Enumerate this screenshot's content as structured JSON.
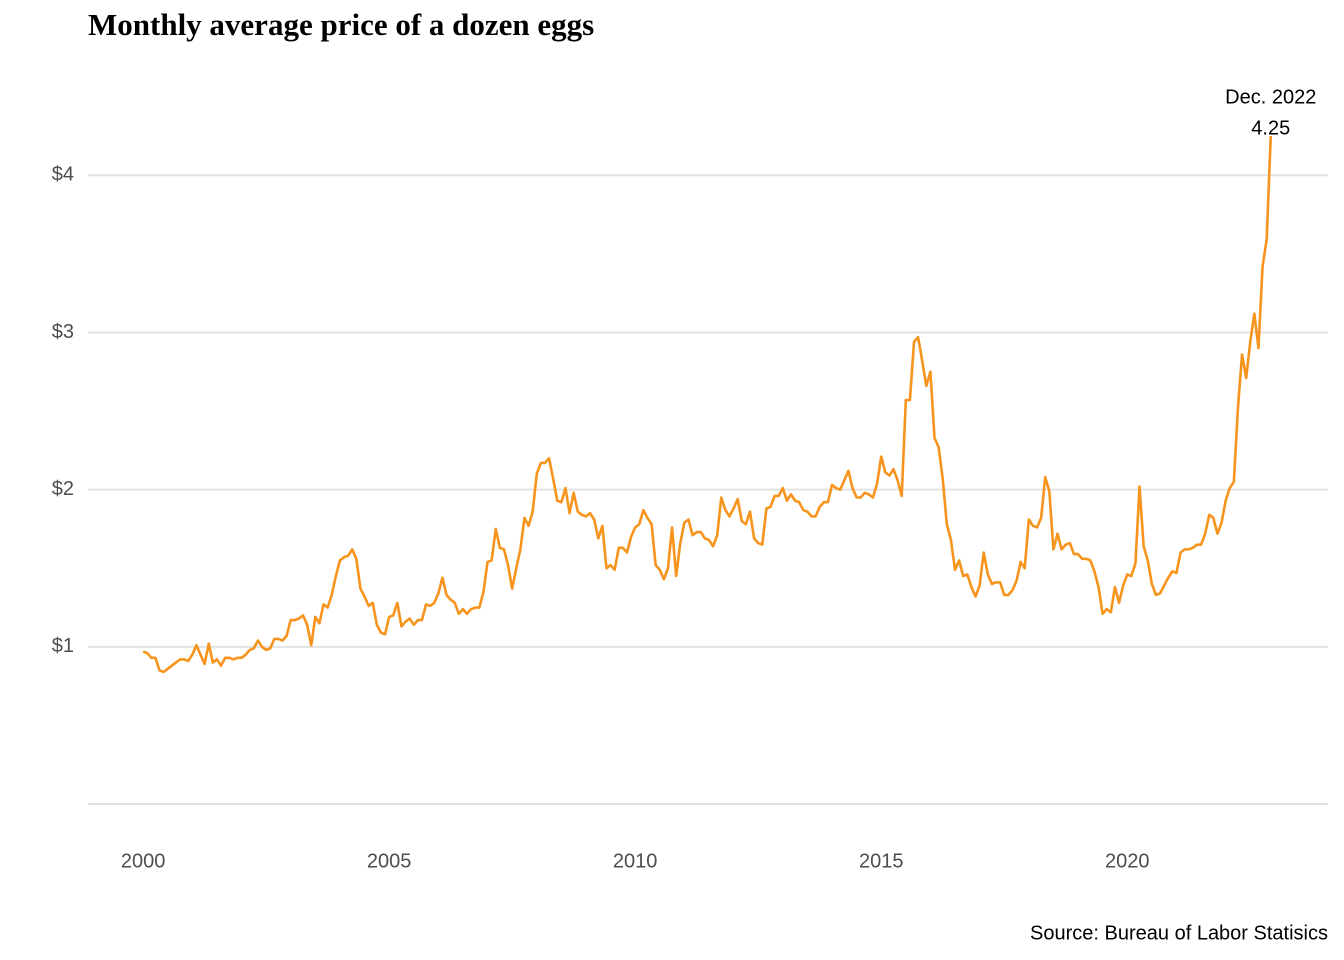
{
  "chart_data": {
    "type": "line",
    "title": "Monthly average price of a dozen eggs",
    "caption": "Source: Bureau of Labor Statisics",
    "annotation": {
      "label": "Dec. 2022"
    },
    "x": [
      "2000-01",
      "2000-02",
      "2000-03",
      "2000-04",
      "2000-05",
      "2000-06",
      "2000-07",
      "2000-08",
      "2000-09",
      "2000-10",
      "2000-11",
      "2000-12",
      "2001-01",
      "2001-02",
      "2001-03",
      "2001-04",
      "2001-05",
      "2001-06",
      "2001-07",
      "2001-08",
      "2001-09",
      "2001-10",
      "2001-11",
      "2001-12",
      "2002-01",
      "2002-02",
      "2002-03",
      "2002-04",
      "2002-05",
      "2002-06",
      "2002-07",
      "2002-08",
      "2002-09",
      "2002-10",
      "2002-11",
      "2002-12",
      "2003-01",
      "2003-02",
      "2003-03",
      "2003-04",
      "2003-05",
      "2003-06",
      "2003-07",
      "2003-08",
      "2003-09",
      "2003-10",
      "2003-11",
      "2003-12",
      "2004-01",
      "2004-02",
      "2004-03",
      "2004-04",
      "2004-05",
      "2004-06",
      "2004-07",
      "2004-08",
      "2004-09",
      "2004-10",
      "2004-11",
      "2004-12",
      "2005-01",
      "2005-02",
      "2005-03",
      "2005-04",
      "2005-05",
      "2005-06",
      "2005-07",
      "2005-08",
      "2005-09",
      "2005-10",
      "2005-11",
      "2005-12",
      "2006-01",
      "2006-02",
      "2006-03",
      "2006-04",
      "2006-05",
      "2006-06",
      "2006-07",
      "2006-08",
      "2006-09",
      "2006-10",
      "2006-11",
      "2006-12",
      "2007-01",
      "2007-02",
      "2007-03",
      "2007-04",
      "2007-05",
      "2007-06",
      "2007-07",
      "2007-08",
      "2007-09",
      "2007-10",
      "2007-11",
      "2007-12",
      "2008-01",
      "2008-02",
      "2008-03",
      "2008-04",
      "2008-05",
      "2008-06",
      "2008-07",
      "2008-08",
      "2008-09",
      "2008-10",
      "2008-11",
      "2008-12",
      "2009-01",
      "2009-02",
      "2009-03",
      "2009-04",
      "2009-05",
      "2009-06",
      "2009-07",
      "2009-08",
      "2009-09",
      "2009-10",
      "2009-11",
      "2009-12",
      "2010-01",
      "2010-02",
      "2010-03",
      "2010-04",
      "2010-05",
      "2010-06",
      "2010-07",
      "2010-08",
      "2010-09",
      "2010-10",
      "2010-11",
      "2010-12",
      "2011-01",
      "2011-02",
      "2011-03",
      "2011-04",
      "2011-05",
      "2011-06",
      "2011-07",
      "2011-08",
      "2011-09",
      "2011-10",
      "2011-11",
      "2011-12",
      "2012-01",
      "2012-02",
      "2012-03",
      "2012-04",
      "2012-05",
      "2012-06",
      "2012-07",
      "2012-08",
      "2012-09",
      "2012-10",
      "2012-11",
      "2012-12",
      "2013-01",
      "2013-02",
      "2013-03",
      "2013-04",
      "2013-05",
      "2013-06",
      "2013-07",
      "2013-08",
      "2013-09",
      "2013-10",
      "2013-11",
      "2013-12",
      "2014-01",
      "2014-02",
      "2014-03",
      "2014-04",
      "2014-05",
      "2014-06",
      "2014-07",
      "2014-08",
      "2014-09",
      "2014-10",
      "2014-11",
      "2014-12",
      "2015-01",
      "2015-02",
      "2015-03",
      "2015-04",
      "2015-05",
      "2015-06",
      "2015-07",
      "2015-08",
      "2015-09",
      "2015-10",
      "2015-11",
      "2015-12",
      "2016-01",
      "2016-02",
      "2016-03",
      "2016-04",
      "2016-05",
      "2016-06",
      "2016-07",
      "2016-08",
      "2016-09",
      "2016-10",
      "2016-11",
      "2016-12",
      "2017-01",
      "2017-02",
      "2017-03",
      "2017-04",
      "2017-05",
      "2017-06",
      "2017-07",
      "2017-08",
      "2017-09",
      "2017-10",
      "2017-11",
      "2017-12",
      "2018-01",
      "2018-02",
      "2018-03",
      "2018-04",
      "2018-05",
      "2018-06",
      "2018-07",
      "2018-08",
      "2018-09",
      "2018-10",
      "2018-11",
      "2018-12",
      "2019-01",
      "2019-02",
      "2019-03",
      "2019-04",
      "2019-05",
      "2019-06",
      "2019-07",
      "2019-08",
      "2019-09",
      "2019-10",
      "2019-11",
      "2019-12",
      "2020-01",
      "2020-02",
      "2020-03",
      "2020-04",
      "2020-05",
      "2020-06",
      "2020-07",
      "2020-08",
      "2020-09",
      "2020-10",
      "2020-11",
      "2020-12",
      "2021-01",
      "2021-02",
      "2021-03",
      "2021-04",
      "2021-05",
      "2021-06",
      "2021-07",
      "2021-08",
      "2021-09",
      "2021-10",
      "2021-11",
      "2021-12",
      "2022-01",
      "2022-02",
      "2022-03",
      "2022-04",
      "2022-05",
      "2022-06",
      "2022-07",
      "2022-08",
      "2022-09",
      "2022-10",
      "2022-11",
      "2022-12"
    ],
    "series": [
      {
        "color": "#f7941d",
        "values": [
          0.97,
          0.96,
          0.93,
          0.93,
          0.85,
          0.84,
          0.86,
          0.88,
          0.9,
          0.92,
          0.92,
          0.91,
          0.95,
          1.01,
          0.95,
          0.89,
          1.02,
          0.9,
          0.92,
          0.88,
          0.93,
          0.93,
          0.92,
          0.93,
          0.93,
          0.95,
          0.98,
          0.99,
          1.04,
          1.0,
          0.98,
          0.99,
          1.05,
          1.05,
          1.04,
          1.07,
          1.17,
          1.17,
          1.18,
          1.2,
          1.14,
          1.01,
          1.19,
          1.15,
          1.27,
          1.25,
          1.33,
          1.45,
          1.55,
          1.57,
          1.58,
          1.62,
          1.56,
          1.37,
          1.32,
          1.26,
          1.28,
          1.14,
          1.09,
          1.08,
          1.19,
          1.2,
          1.28,
          1.13,
          1.16,
          1.18,
          1.14,
          1.17,
          1.17,
          1.27,
          1.26,
          1.28,
          1.34,
          1.44,
          1.33,
          1.3,
          1.28,
          1.21,
          1.24,
          1.21,
          1.24,
          1.25,
          1.25,
          1.35,
          1.54,
          1.55,
          1.75,
          1.63,
          1.62,
          1.52,
          1.37,
          1.5,
          1.62,
          1.82,
          1.77,
          1.86,
          2.1,
          2.17,
          2.17,
          2.2,
          2.07,
          1.93,
          1.92,
          2.01,
          1.85,
          1.98,
          1.86,
          1.84,
          1.83,
          1.85,
          1.81,
          1.69,
          1.77,
          1.5,
          1.52,
          1.49,
          1.63,
          1.63,
          1.6,
          1.7,
          1.76,
          1.78,
          1.87,
          1.82,
          1.78,
          1.52,
          1.49,
          1.43,
          1.5,
          1.76,
          1.45,
          1.66,
          1.79,
          1.81,
          1.71,
          1.73,
          1.73,
          1.69,
          1.68,
          1.64,
          1.71,
          1.95,
          1.87,
          1.83,
          1.88,
          1.94,
          1.8,
          1.78,
          1.86,
          1.69,
          1.66,
          1.65,
          1.88,
          1.89,
          1.96,
          1.96,
          2.01,
          1.93,
          1.97,
          1.93,
          1.92,
          1.87,
          1.86,
          1.83,
          1.83,
          1.89,
          1.92,
          1.92,
          2.03,
          2.01,
          2.0,
          2.06,
          2.12,
          2.01,
          1.95,
          1.95,
          1.98,
          1.97,
          1.95,
          2.04,
          2.21,
          2.11,
          2.09,
          2.13,
          2.06,
          1.96,
          2.57,
          2.57,
          2.94,
          2.97,
          2.82,
          2.66,
          2.75,
          2.33,
          2.27,
          2.07,
          1.78,
          1.68,
          1.49,
          1.55,
          1.45,
          1.46,
          1.38,
          1.32,
          1.39,
          1.6,
          1.46,
          1.4,
          1.41,
          1.41,
          1.33,
          1.33,
          1.36,
          1.42,
          1.54,
          1.5,
          1.81,
          1.77,
          1.76,
          1.82,
          2.08,
          1.99,
          1.62,
          1.72,
          1.62,
          1.65,
          1.66,
          1.59,
          1.59,
          1.56,
          1.56,
          1.55,
          1.48,
          1.38,
          1.21,
          1.24,
          1.22,
          1.38,
          1.28,
          1.39,
          1.46,
          1.45,
          1.53,
          2.02,
          1.64,
          1.55,
          1.4,
          1.33,
          1.34,
          1.39,
          1.44,
          1.48,
          1.47,
          1.6,
          1.62,
          1.62,
          1.63,
          1.65,
          1.65,
          1.72,
          1.84,
          1.82,
          1.72,
          1.79,
          1.93,
          2.01,
          2.05,
          2.52,
          2.86,
          2.71,
          2.94,
          3.12,
          2.9,
          3.42,
          3.59,
          4.25
        ]
      }
    ],
    "xlim": [
      1998.88,
      2024.08
    ],
    "ylim": [
      0,
      4.25
    ],
    "xticks": [
      2000,
      2005,
      2010,
      2015,
      2020
    ],
    "yticks": [
      {
        "value": 1,
        "label": "$1"
      },
      {
        "value": 2,
        "label": "$2"
      },
      {
        "value": 3,
        "label": "$3"
      },
      {
        "value": 4,
        "label": "$4"
      }
    ],
    "grid": true
  }
}
